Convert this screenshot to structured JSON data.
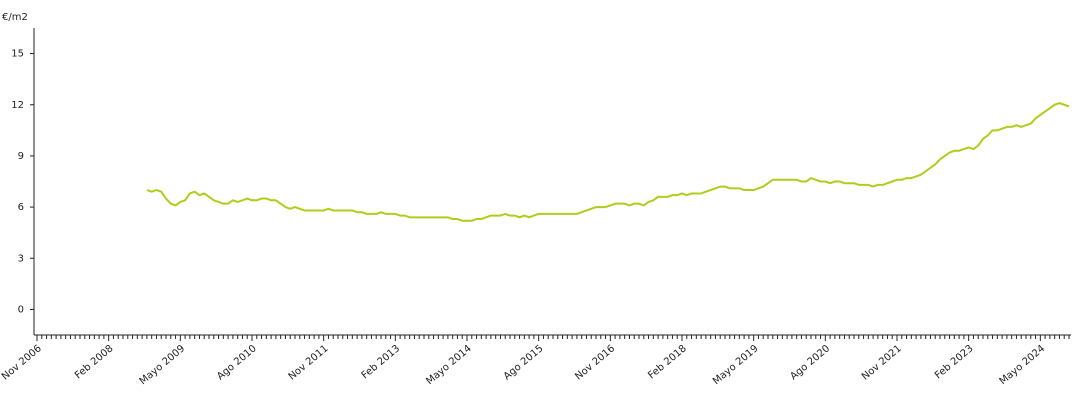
{
  "chart_data": {
    "type": "line",
    "y_label": "€/m2",
    "categories": [
      "Nov 2006",
      null,
      null,
      null,
      null,
      null,
      null,
      null,
      null,
      null,
      null,
      null,
      null,
      null,
      null,
      "Feb 2008",
      null,
      null,
      null,
      null,
      null,
      null,
      null,
      null,
      null,
      null,
      null,
      null,
      null,
      null,
      "Mayo 2009",
      null,
      null,
      null,
      null,
      null,
      null,
      null,
      null,
      null,
      null,
      null,
      null,
      null,
      null,
      "Ago 2010",
      null,
      null,
      null,
      null,
      null,
      null,
      null,
      null,
      null,
      null,
      null,
      null,
      null,
      null,
      "Nov 2011",
      null,
      null,
      null,
      null,
      null,
      null,
      null,
      null,
      null,
      null,
      null,
      null,
      null,
      null,
      "Feb 2013",
      null,
      null,
      null,
      null,
      null,
      null,
      null,
      null,
      null,
      null,
      null,
      null,
      null,
      null,
      "Mayo 2014",
      null,
      null,
      null,
      null,
      null,
      null,
      null,
      null,
      null,
      null,
      null,
      null,
      null,
      null,
      "Ago 2015",
      null,
      null,
      null,
      null,
      null,
      null,
      null,
      null,
      null,
      null,
      null,
      null,
      null,
      null,
      "Nov 2016",
      null,
      null,
      null,
      null,
      null,
      null,
      null,
      null,
      null,
      null,
      null,
      null,
      null,
      null,
      "Feb 2018",
      null,
      null,
      null,
      null,
      null,
      null,
      null,
      null,
      null,
      null,
      null,
      null,
      null,
      null,
      "Mayo 2019",
      null,
      null,
      null,
      null,
      null,
      null,
      null,
      null,
      null,
      null,
      null,
      null,
      null,
      null,
      "Ago 2020",
      null,
      null,
      null,
      null,
      null,
      null,
      null,
      null,
      null,
      null,
      null,
      null,
      null,
      null,
      "Nov 2021",
      null,
      null,
      null,
      null,
      null,
      null,
      null,
      null,
      null,
      null,
      null,
      null,
      null,
      null,
      "Feb 2023",
      null,
      null,
      null,
      null,
      null,
      null,
      null,
      null,
      null,
      null,
      null,
      null,
      null,
      null,
      "Mayo 2024",
      null,
      null,
      null,
      null,
      null,
      null
    ],
    "values": [
      null,
      null,
      null,
      null,
      null,
      null,
      null,
      null,
      null,
      null,
      null,
      null,
      null,
      null,
      null,
      null,
      null,
      null,
      null,
      null,
      null,
      null,
      null,
      7.0,
      6.9,
      7.0,
      6.9,
      6.5,
      6.2,
      6.1,
      6.3,
      6.4,
      6.8,
      6.9,
      6.7,
      6.8,
      6.6,
      6.4,
      6.3,
      6.2,
      6.2,
      6.4,
      6.3,
      6.4,
      6.5,
      6.4,
      6.4,
      6.5,
      6.5,
      6.4,
      6.4,
      6.2,
      6.0,
      5.9,
      6.0,
      5.9,
      5.8,
      5.8,
      5.8,
      5.8,
      5.8,
      5.9,
      5.8,
      5.8,
      5.8,
      5.8,
      5.8,
      5.7,
      5.7,
      5.6,
      5.6,
      5.6,
      5.7,
      5.6,
      5.6,
      5.6,
      5.5,
      5.5,
      5.4,
      5.4,
      5.4,
      5.4,
      5.4,
      5.4,
      5.4,
      5.4,
      5.4,
      5.3,
      5.3,
      5.2,
      5.2,
      5.2,
      5.3,
      5.3,
      5.4,
      5.5,
      5.5,
      5.5,
      5.6,
      5.5,
      5.5,
      5.4,
      5.5,
      5.4,
      5.5,
      5.6,
      5.6,
      5.6,
      5.6,
      5.6,
      5.6,
      5.6,
      5.6,
      5.6,
      5.7,
      5.8,
      5.9,
      6.0,
      6.0,
      6.0,
      6.1,
      6.2,
      6.2,
      6.2,
      6.1,
      6.2,
      6.2,
      6.1,
      6.3,
      6.4,
      6.6,
      6.6,
      6.6,
      6.7,
      6.7,
      6.8,
      6.7,
      6.8,
      6.8,
      6.8,
      6.9,
      7.0,
      7.1,
      7.2,
      7.2,
      7.1,
      7.1,
      7.1,
      7.0,
      7.0,
      7.0,
      7.1,
      7.2,
      7.4,
      7.6,
      7.6,
      7.6,
      7.6,
      7.6,
      7.6,
      7.5,
      7.5,
      7.7,
      7.6,
      7.5,
      7.5,
      7.4,
      7.5,
      7.5,
      7.4,
      7.4,
      7.4,
      7.3,
      7.3,
      7.3,
      7.2,
      7.3,
      7.3,
      7.4,
      7.5,
      7.6,
      7.6,
      7.7,
      7.7,
      7.8,
      7.9,
      8.1,
      8.3,
      8.5,
      8.8,
      9.0,
      9.2,
      9.3,
      9.3,
      9.4,
      9.5,
      9.4,
      9.6,
      10.0,
      10.2,
      10.5,
      10.5,
      10.6,
      10.7,
      10.7,
      10.8,
      10.7,
      10.8,
      10.9,
      11.2,
      11.4,
      11.6,
      11.8,
      12.0,
      12.1,
      12.0,
      11.9
    ],
    "color": "#b2cc1c",
    "ylim": [
      -1.5,
      16.5
    ],
    "yticks": [
      0,
      3,
      6,
      9,
      12,
      15
    ]
  }
}
